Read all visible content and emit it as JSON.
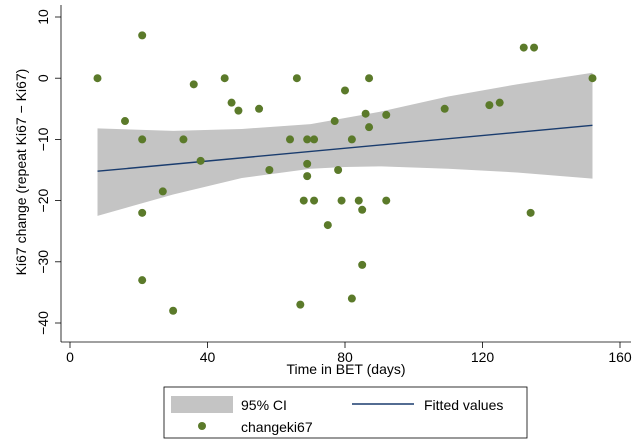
{
  "chart_data": {
    "type": "scatter",
    "title": "",
    "xlabel": "Time in BET (days)",
    "ylabel": "Ki67 change (repeat Ki67 − Ki67)",
    "xlim": [
      0,
      160
    ],
    "ylim": [
      -40,
      10
    ],
    "xticks": [
      "0",
      "40",
      "80",
      "120",
      "160"
    ],
    "yticks": [
      "−40",
      "−30",
      "−20",
      "−10",
      "0",
      "10"
    ],
    "grid": false,
    "legend_position": "bottom",
    "colors": {
      "points": "#5b7a2a",
      "fit_line": "#1a3c6e",
      "ci_band": "#c4c4c4",
      "legend_border": "#000000"
    },
    "legend": {
      "ci_label": "95% CI",
      "fit_label": "Fitted values",
      "points_label": "changeki67"
    },
    "points": [
      {
        "x": 8,
        "y": 0
      },
      {
        "x": 16,
        "y": -7
      },
      {
        "x": 21,
        "y": 7
      },
      {
        "x": 21,
        "y": -10
      },
      {
        "x": 21,
        "y": -22
      },
      {
        "x": 21,
        "y": -33
      },
      {
        "x": 27,
        "y": -18.5
      },
      {
        "x": 30,
        "y": -38
      },
      {
        "x": 33,
        "y": -10
      },
      {
        "x": 36,
        "y": -1
      },
      {
        "x": 38,
        "y": -13.5
      },
      {
        "x": 45,
        "y": 0
      },
      {
        "x": 47,
        "y": -4
      },
      {
        "x": 49,
        "y": -5.3
      },
      {
        "x": 55,
        "y": -5
      },
      {
        "x": 58,
        "y": -15
      },
      {
        "x": 64,
        "y": -10
      },
      {
        "x": 66,
        "y": 0
      },
      {
        "x": 67,
        "y": -37
      },
      {
        "x": 68,
        "y": -20
      },
      {
        "x": 69,
        "y": -10
      },
      {
        "x": 69,
        "y": -14
      },
      {
        "x": 69,
        "y": -16
      },
      {
        "x": 71,
        "y": -10
      },
      {
        "x": 71,
        "y": -20
      },
      {
        "x": 75,
        "y": -24
      },
      {
        "x": 77,
        "y": -7
      },
      {
        "x": 78,
        "y": -15
      },
      {
        "x": 79,
        "y": -20
      },
      {
        "x": 80,
        "y": -2
      },
      {
        "x": 82,
        "y": -10
      },
      {
        "x": 82,
        "y": -36
      },
      {
        "x": 84,
        "y": -20
      },
      {
        "x": 85,
        "y": -21.5
      },
      {
        "x": 85,
        "y": -30.5
      },
      {
        "x": 86,
        "y": -5.8
      },
      {
        "x": 87,
        "y": 0
      },
      {
        "x": 87,
        "y": -8
      },
      {
        "x": 92,
        "y": -6
      },
      {
        "x": 92,
        "y": -20
      },
      {
        "x": 109,
        "y": -5
      },
      {
        "x": 122,
        "y": -4.4
      },
      {
        "x": 125,
        "y": -4
      },
      {
        "x": 132,
        "y": 5
      },
      {
        "x": 134,
        "y": -22
      },
      {
        "x": 135,
        "y": 5
      },
      {
        "x": 152,
        "y": 0
      }
    ],
    "fit_line": {
      "x": [
        8,
        152
      ],
      "y": [
        -15.2,
        -7.7
      ]
    },
    "ci_band": {
      "x": [
        8,
        30,
        50,
        70,
        80,
        90,
        110,
        130,
        152
      ],
      "upper": [
        -8.2,
        -8.6,
        -8.3,
        -7.5,
        -6.5,
        -5.5,
        -3.0,
        -1.0,
        0.9
      ],
      "lower": [
        -22.5,
        -19.0,
        -16.3,
        -14.8,
        -14.5,
        -14.4,
        -14.8,
        -15.4,
        -16.4
      ]
    }
  }
}
